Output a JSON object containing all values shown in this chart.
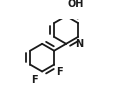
{
  "bg_color": "#ffffff",
  "line_color": "#1a1a1a",
  "line_width": 1.3,
  "font_size_label": 7.0,
  "atoms": {
    "F1_label": "F",
    "F2_label": "F",
    "N_label": "N",
    "OH_label": "OH"
  }
}
